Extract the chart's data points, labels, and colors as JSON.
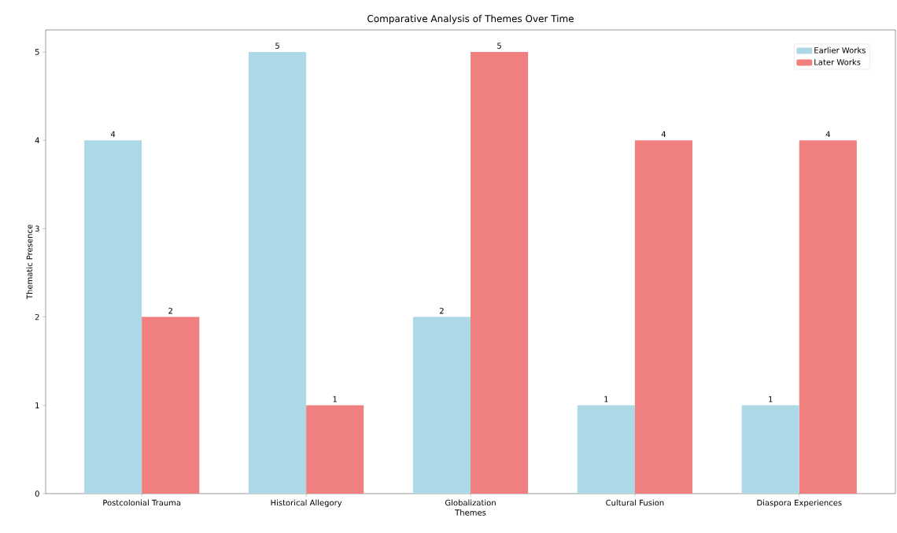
{
  "chart_data": {
    "type": "bar",
    "title": "Comparative Analysis of Themes Over Time",
    "xlabel": "Themes",
    "ylabel": "Thematic Presence",
    "categories": [
      "Postcolonial Trauma",
      "Historical Allegory",
      "Globalization",
      "Cultural Fusion",
      "Diaspora Experiences"
    ],
    "series": [
      {
        "name": "Earlier Works",
        "color": "#add8e6",
        "values": [
          4,
          5,
          2,
          1,
          1
        ]
      },
      {
        "name": "Later Works",
        "color": "#f08080",
        "values": [
          2,
          1,
          5,
          4,
          4
        ]
      }
    ],
    "ylim": [
      0,
      5.25
    ],
    "yticks": [
      0,
      1,
      2,
      3,
      4,
      5
    ],
    "data_labels": true,
    "legend": "top right",
    "grid": false
  }
}
